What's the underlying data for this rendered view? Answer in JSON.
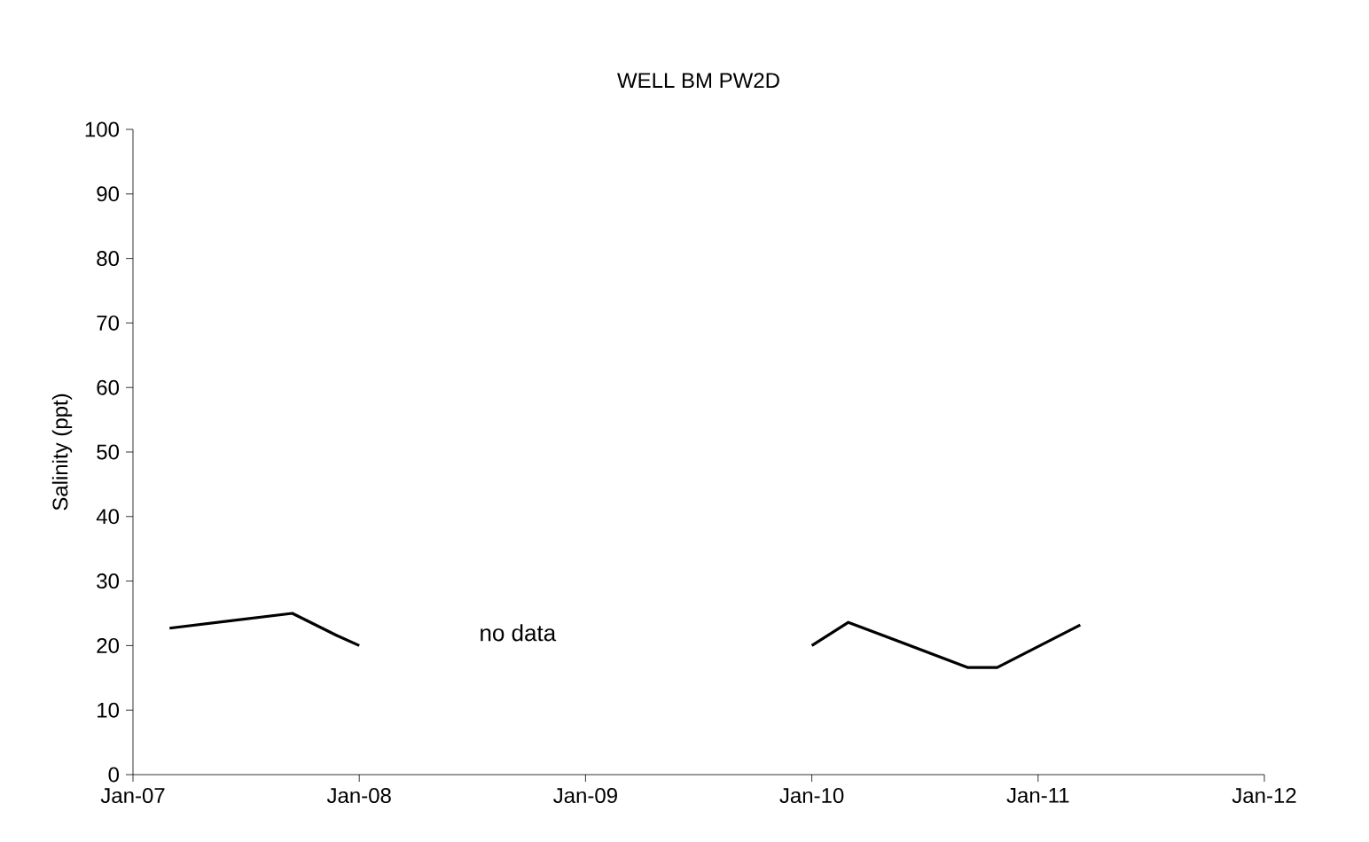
{
  "chart_data": {
    "type": "line",
    "title": "WELL BM PW2D",
    "ylabel": "Salinity (ppt)",
    "x": [
      "2007-03-01",
      "2007-09-15",
      "2007-11-25",
      "2008-01-01",
      "2009-01-01",
      "2010-01-01",
      "2010-03-01",
      "2010-09-10",
      "2010-10-27",
      "2011-03-10"
    ],
    "series": [
      {
        "color": "#000000",
        "values": [
          22.7,
          25,
          21.6,
          20,
          null,
          20,
          23.6,
          16.6,
          16.6,
          23.2
        ]
      }
    ],
    "xlim": [
      "2007-01",
      "2012-01"
    ],
    "xticks": [
      {
        "value": "2007-01",
        "label": "Jan-07"
      },
      {
        "value": "2008-01",
        "label": "Jan-08"
      },
      {
        "value": "2009-01",
        "label": "Jan-09"
      },
      {
        "value": "2010-01",
        "label": "Jan-10"
      },
      {
        "value": "2011-01",
        "label": "Jan-11"
      },
      {
        "value": "2012-01",
        "label": "Jan-12"
      }
    ],
    "ylim": [
      0,
      100
    ],
    "yticks": [
      0,
      10,
      20,
      30,
      40,
      50,
      60,
      70,
      80,
      90,
      100
    ],
    "annotations": [
      "no data"
    ],
    "grid": false,
    "marker": "none",
    "line_style": "solid"
  }
}
